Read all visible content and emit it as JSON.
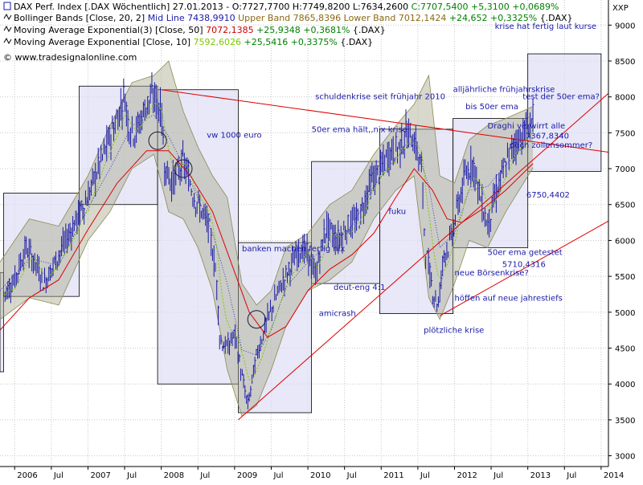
{
  "corner_label": "XXP",
  "header": {
    "line1": [
      {
        "text": "DAX Perf. Index [.DAX  Wöchentlich] 27.01.2013 - ",
        "color": "#000000"
      },
      {
        "text": "O:7727,7700 H:7749,8200 L:7634,2600 ",
        "color": "#000000"
      },
      {
        "text": "C:7707,5400 +5,3100 +0,0689%",
        "color": "#008000"
      }
    ],
    "line2": [
      {
        "text": "Bollinger Bands [Close, 20, 2] ",
        "color": "#000000"
      },
      {
        "text": "Mid Line 7438,9910 ",
        "color": "#1a1aa8"
      },
      {
        "text": "Upper Band 7865,8396 Lower Band 7012,1424 ",
        "color": "#8b6914"
      },
      {
        "text": "+24,652 +0,3325% ",
        "color": "#008000"
      },
      {
        "text": "{.DAX}",
        "color": "#000000"
      }
    ],
    "line3": [
      {
        "text": "Moving Average Exponential(3) [Close, 50] ",
        "color": "#000000"
      },
      {
        "text": "7072,1385 ",
        "color": "#cc0000"
      },
      {
        "text": "+25,9348 +0,3681% ",
        "color": "#008000"
      },
      {
        "text": "{.DAX}",
        "color": "#000000"
      }
    ],
    "line4": [
      {
        "text": "Moving Average Exponential [Close, 10] ",
        "color": "#000000"
      },
      {
        "text": "7592,6026 ",
        "color": "#7ec800"
      },
      {
        "text": "+25,5416 +0,3375% ",
        "color": "#008000"
      },
      {
        "text": "{.DAX}",
        "color": "#000000"
      }
    ],
    "watermark": "© www.tradesignalonline.com"
  },
  "chart_data": {
    "type": "line",
    "series_name": "DAX Perf. Index",
    "x_labels": [
      "2006",
      "Jul",
      "2007",
      "Jul",
      "2008",
      "Jul",
      "2009",
      "Jul",
      "2010",
      "Jul",
      "2011",
      "Jul",
      "2012",
      "Jul",
      "2013",
      "Jul",
      "2014"
    ],
    "x_range": [
      2005.8,
      2014.1
    ],
    "ylim": [
      2850,
      9350
    ],
    "y_ticks": [
      3000,
      3500,
      4000,
      4500,
      5000,
      5500,
      6000,
      6500,
      7000,
      7500,
      8000,
      8500,
      9000
    ],
    "price_path": [
      [
        2005.85,
        5250
      ],
      [
        2006.0,
        5450
      ],
      [
        2006.15,
        5900
      ],
      [
        2006.3,
        5650
      ],
      [
        2006.4,
        5400
      ],
      [
        2006.55,
        5700
      ],
      [
        2006.7,
        6000
      ],
      [
        2006.85,
        6300
      ],
      [
        2007.0,
        6600
      ],
      [
        2007.1,
        6900
      ],
      [
        2007.25,
        7300
      ],
      [
        2007.4,
        7700
      ],
      [
        2007.5,
        8050
      ],
      [
        2007.55,
        7600
      ],
      [
        2007.65,
        7500
      ],
      [
        2007.8,
        7900
      ],
      [
        2007.9,
        8000
      ],
      [
        2008.0,
        7800
      ],
      [
        2008.05,
        7000
      ],
      [
        2008.15,
        6800
      ],
      [
        2008.3,
        7100
      ],
      [
        2008.45,
        6600
      ],
      [
        2008.55,
        6400
      ],
      [
        2008.65,
        6200
      ],
      [
        2008.75,
        5500
      ],
      [
        2008.8,
        4600
      ],
      [
        2008.9,
        4500
      ],
      [
        2009.0,
        4700
      ],
      [
        2009.1,
        4100
      ],
      [
        2009.18,
        3700
      ],
      [
        2009.3,
        4400
      ],
      [
        2009.45,
        4900
      ],
      [
        2009.6,
        5300
      ],
      [
        2009.75,
        5600
      ],
      [
        2009.9,
        5900
      ],
      [
        2010.0,
        5800
      ],
      [
        2010.1,
        5500
      ],
      [
        2010.25,
        6200
      ],
      [
        2010.4,
        6000
      ],
      [
        2010.55,
        6200
      ],
      [
        2010.7,
        6300
      ],
      [
        2010.85,
        6800
      ],
      [
        2011.0,
        7000
      ],
      [
        2011.1,
        7200
      ],
      [
        2011.25,
        7300
      ],
      [
        2011.35,
        7500
      ],
      [
        2011.45,
        7400
      ],
      [
        2011.55,
        7000
      ],
      [
        2011.6,
        5900
      ],
      [
        2011.7,
        5300
      ],
      [
        2011.78,
        5100
      ],
      [
        2011.85,
        5800
      ],
      [
        2011.95,
        6000
      ],
      [
        2012.05,
        6500
      ],
      [
        2012.15,
        6900
      ],
      [
        2012.25,
        7100
      ],
      [
        2012.35,
        6600
      ],
      [
        2012.45,
        6200
      ],
      [
        2012.55,
        6600
      ],
      [
        2012.65,
        6900
      ],
      [
        2012.75,
        7200
      ],
      [
        2012.85,
        7400
      ],
      [
        2012.95,
        7500
      ],
      [
        2013.07,
        7700
      ]
    ],
    "ema50_path": [
      [
        2005.8,
        4750
      ],
      [
        2006.2,
        5200
      ],
      [
        2006.6,
        5450
      ],
      [
        2007.0,
        6150
      ],
      [
        2007.4,
        6800
      ],
      [
        2007.8,
        7250
      ],
      [
        2008.1,
        7250
      ],
      [
        2008.4,
        6900
      ],
      [
        2008.7,
        6400
      ],
      [
        2008.95,
        5700
      ],
      [
        2009.2,
        5000
      ],
      [
        2009.45,
        4650
      ],
      [
        2009.7,
        4800
      ],
      [
        2010.0,
        5300
      ],
      [
        2010.3,
        5600
      ],
      [
        2010.6,
        5800
      ],
      [
        2010.9,
        6100
      ],
      [
        2011.2,
        6600
      ],
      [
        2011.45,
        7000
      ],
      [
        2011.7,
        6700
      ],
      [
        2011.9,
        6300
      ],
      [
        2012.1,
        6250
      ],
      [
        2012.4,
        6450
      ],
      [
        2012.7,
        6700
      ],
      [
        2013.07,
        7072
      ]
    ],
    "bollinger_upper_path": [
      [
        2005.8,
        5700
      ],
      [
        2006.2,
        6300
      ],
      [
        2006.6,
        6200
      ],
      [
        2007.0,
        6900
      ],
      [
        2007.3,
        7600
      ],
      [
        2007.6,
        8200
      ],
      [
        2007.9,
        8300
      ],
      [
        2008.1,
        8500
      ],
      [
        2008.3,
        7800
      ],
      [
        2008.5,
        7300
      ],
      [
        2008.7,
        6900
      ],
      [
        2008.9,
        6600
      ],
      [
        2009.1,
        5400
      ],
      [
        2009.3,
        5100
      ],
      [
        2009.5,
        5300
      ],
      [
        2009.7,
        5900
      ],
      [
        2010.0,
        6100
      ],
      [
        2010.3,
        6500
      ],
      [
        2010.6,
        6700
      ],
      [
        2010.9,
        7200
      ],
      [
        2011.2,
        7600
      ],
      [
        2011.45,
        7900
      ],
      [
        2011.65,
        8300
      ],
      [
        2011.8,
        6900
      ],
      [
        2012.0,
        6800
      ],
      [
        2012.2,
        7400
      ],
      [
        2012.45,
        7600
      ],
      [
        2012.7,
        7700
      ],
      [
        2013.07,
        7866
      ]
    ],
    "bollinger_lower_path": [
      [
        2005.8,
        4900
      ],
      [
        2006.2,
        5200
      ],
      [
        2006.6,
        5100
      ],
      [
        2007.0,
        6000
      ],
      [
        2007.3,
        6400
      ],
      [
        2007.6,
        7000
      ],
      [
        2007.9,
        7200
      ],
      [
        2008.1,
        6400
      ],
      [
        2008.3,
        6300
      ],
      [
        2008.5,
        5900
      ],
      [
        2008.7,
        5300
      ],
      [
        2008.9,
        4200
      ],
      [
        2009.1,
        3550
      ],
      [
        2009.3,
        3700
      ],
      [
        2009.5,
        4200
      ],
      [
        2009.7,
        4800
      ],
      [
        2010.0,
        5300
      ],
      [
        2010.3,
        5450
      ],
      [
        2010.6,
        5700
      ],
      [
        2010.9,
        6300
      ],
      [
        2011.2,
        6700
      ],
      [
        2011.45,
        6900
      ],
      [
        2011.65,
        5200
      ],
      [
        2011.8,
        4900
      ],
      [
        2012.0,
        5400
      ],
      [
        2012.2,
        6000
      ],
      [
        2012.45,
        5900
      ],
      [
        2012.7,
        6400
      ],
      [
        2013.07,
        7012
      ]
    ],
    "range_boxes": [
      {
        "x0": 2005.8,
        "x1": 2005.85,
        "y0": 4170,
        "y1": 5550
      },
      {
        "x0": 2005.85,
        "x1": 2006.88,
        "y0": 5220,
        "y1": 6660
      },
      {
        "x0": 2006.88,
        "x1": 2007.95,
        "y0": 6500,
        "y1": 8150
      },
      {
        "x0": 2007.95,
        "x1": 2009.05,
        "y0": 4000,
        "y1": 8100
      },
      {
        "x0": 2009.05,
        "x1": 2010.05,
        "y0": 3600,
        "y1": 5970
      },
      {
        "x0": 2010.05,
        "x1": 2010.98,
        "y0": 5400,
        "y1": 7100
      },
      {
        "x0": 2010.98,
        "x1": 2011.98,
        "y0": 4980,
        "y1": 7550
      },
      {
        "x0": 2011.98,
        "x1": 2013.0,
        "y0": 5900,
        "y1": 7700
      },
      {
        "x0": 2013.0,
        "x1": 2014.0,
        "y0": 6960,
        "y1": 8600
      }
    ],
    "trend_lines": [
      {
        "x0": 2008.0,
        "y0": 8100,
        "x1": 2014.1,
        "y1": 7230
      },
      {
        "x0": 2009.05,
        "y0": 3500,
        "x1": 2014.1,
        "y1": 8050
      },
      {
        "x0": 2011.8,
        "y0": 4950,
        "x1": 2014.1,
        "y1": 6270
      }
    ],
    "circles": [
      {
        "x": 2007.95,
        "y": 7390
      },
      {
        "x": 2008.3,
        "y": 7000
      },
      {
        "x": 2009.3,
        "y": 4900
      }
    ],
    "annotations": [
      {
        "text": "krise hat fertig laut kurse",
        "x": 2012.55,
        "y": 8950,
        "color": "#1a1aa8"
      },
      {
        "text": "alljährliche frühjahrskrise",
        "x": 2011.98,
        "y": 8070,
        "color": "#1a1aa8"
      },
      {
        "text": "test der 50er ema?",
        "x": 2012.93,
        "y": 7970,
        "color": "#1a1aa8"
      },
      {
        "text": "schuldenkrise seit frühjahr 2010",
        "x": 2010.1,
        "y": 7970,
        "color": "#1a1aa8"
      },
      {
        "text": "bis 50er ema",
        "x": 2012.15,
        "y": 7830,
        "color": "#1a1aa8"
      },
      {
        "text": "Draghi verwirrt alle",
        "x": 2012.45,
        "y": 7560,
        "color": "#1a1aa8"
      },
      {
        "text": "50er ema hält,,nix krise",
        "x": 2010.05,
        "y": 7510,
        "color": "#1a1aa8"
      },
      {
        "text": "7367,8340",
        "x": 2012.97,
        "y": 7420,
        "color": "#cc0000"
      },
      {
        "text": "vw 1000 euro",
        "x": 2008.62,
        "y": 7430,
        "color": "#1a1aa8"
      },
      {
        "text": "doch zollensommer?",
        "x": 2012.75,
        "y": 7290,
        "color": "#1a1aa8"
      },
      {
        "text": "6750,4402",
        "x": 2012.98,
        "y": 6600,
        "color": "#cc0000"
      },
      {
        "text": "fuku",
        "x": 2011.1,
        "y": 6370,
        "color": "#1a1aa8"
      },
      {
        "text": "banken machen fertig nix",
        "x": 2009.1,
        "y": 5850,
        "color": "#1a1aa8"
      },
      {
        "text": "50er ema getestet",
        "x": 2012.45,
        "y": 5800,
        "color": "#1a1aa8"
      },
      {
        "text": "5710,4316",
        "x": 2012.65,
        "y": 5630,
        "color": "#cc0000"
      },
      {
        "text": "neue Börsenkrise?",
        "x": 2012.0,
        "y": 5510,
        "color": "#1a1aa8"
      },
      {
        "text": "deut-eng 4:1",
        "x": 2010.35,
        "y": 5310,
        "color": "#1a1aa8"
      },
      {
        "text": "höffen auf neue jahrestiefs",
        "x": 2012.0,
        "y": 5160,
        "color": "#1a1aa8"
      },
      {
        "text": "amicrash",
        "x": 2010.15,
        "y": 4950,
        "color": "#1a1aa8"
      },
      {
        "text": "plötzliche krise",
        "x": 2011.58,
        "y": 4710,
        "color": "#1a1aa8"
      }
    ],
    "grid": true
  }
}
